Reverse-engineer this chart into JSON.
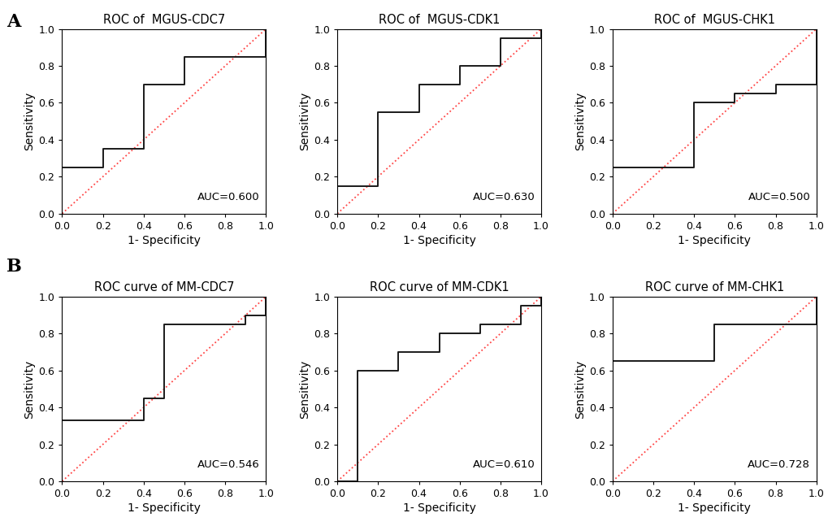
{
  "plots": [
    {
      "title": "ROC of  MGUS-CDC7",
      "auc": "AUC=0.600",
      "roc_x": [
        0.0,
        0.0,
        0.2,
        0.2,
        0.4,
        0.6,
        1.0,
        1.0
      ],
      "roc_y": [
        0.0,
        0.25,
        0.25,
        0.35,
        0.7,
        0.85,
        0.85,
        1.0
      ],
      "row": 0,
      "col": 0
    },
    {
      "title": "ROC of  MGUS-CDK1",
      "auc": "AUC=0.630",
      "roc_x": [
        0.0,
        0.0,
        0.2,
        0.2,
        0.4,
        0.6,
        0.8,
        1.0,
        1.0
      ],
      "roc_y": [
        0.0,
        0.15,
        0.15,
        0.55,
        0.7,
        0.8,
        0.95,
        0.95,
        1.0
      ],
      "row": 0,
      "col": 1
    },
    {
      "title": "ROC of  MGUS-CHK1",
      "auc": "AUC=0.500",
      "roc_x": [
        0.0,
        0.0,
        0.2,
        0.4,
        0.4,
        0.6,
        0.8,
        1.0
      ],
      "roc_y": [
        0.0,
        0.25,
        0.25,
        0.25,
        0.6,
        0.65,
        0.7,
        1.0
      ],
      "row": 0,
      "col": 2
    },
    {
      "title": "ROC curve of MM-CDC7",
      "auc": "AUC=0.546",
      "roc_x": [
        0.0,
        0.0,
        0.4,
        0.4,
        0.5,
        0.9,
        1.0
      ],
      "roc_y": [
        0.0,
        0.33,
        0.33,
        0.45,
        0.85,
        0.9,
        1.0
      ],
      "row": 1,
      "col": 0
    },
    {
      "title": "ROC curve of MM-CDK1",
      "auc": "AUC=0.610",
      "roc_x": [
        0.0,
        0.1,
        0.1,
        0.3,
        0.5,
        0.7,
        0.9,
        1.0
      ],
      "roc_y": [
        0.0,
        0.0,
        0.6,
        0.7,
        0.8,
        0.85,
        0.95,
        1.0
      ],
      "row": 1,
      "col": 1
    },
    {
      "title": "ROC curve of MM-CHK1",
      "auc": "AUC=0.728",
      "roc_x": [
        0.0,
        0.0,
        0.3,
        0.5,
        0.5,
        1.0
      ],
      "roc_y": [
        0.0,
        0.65,
        0.65,
        0.65,
        0.85,
        1.0
      ],
      "row": 1,
      "col": 2
    }
  ],
  "panel_labels": [
    "A",
    "B"
  ],
  "roc_line_color": "#1a1a1a",
  "diag_line_color": "#ff4444",
  "diag_line_style": "dotted",
  "xlabel": "1- Specificity",
  "ylabel": "Sensitivity",
  "xticks": [
    0.0,
    0.2,
    0.4,
    0.6,
    0.8,
    1.0
  ],
  "yticks": [
    0.0,
    0.2,
    0.4,
    0.6,
    0.8,
    1.0
  ],
  "xlim": [
    0.0,
    1.0
  ],
  "ylim": [
    0.0,
    1.0
  ],
  "tick_fontsize": 9,
  "label_fontsize": 10,
  "title_fontsize": 10.5,
  "auc_fontsize": 9.5,
  "bg_color": "#ffffff"
}
